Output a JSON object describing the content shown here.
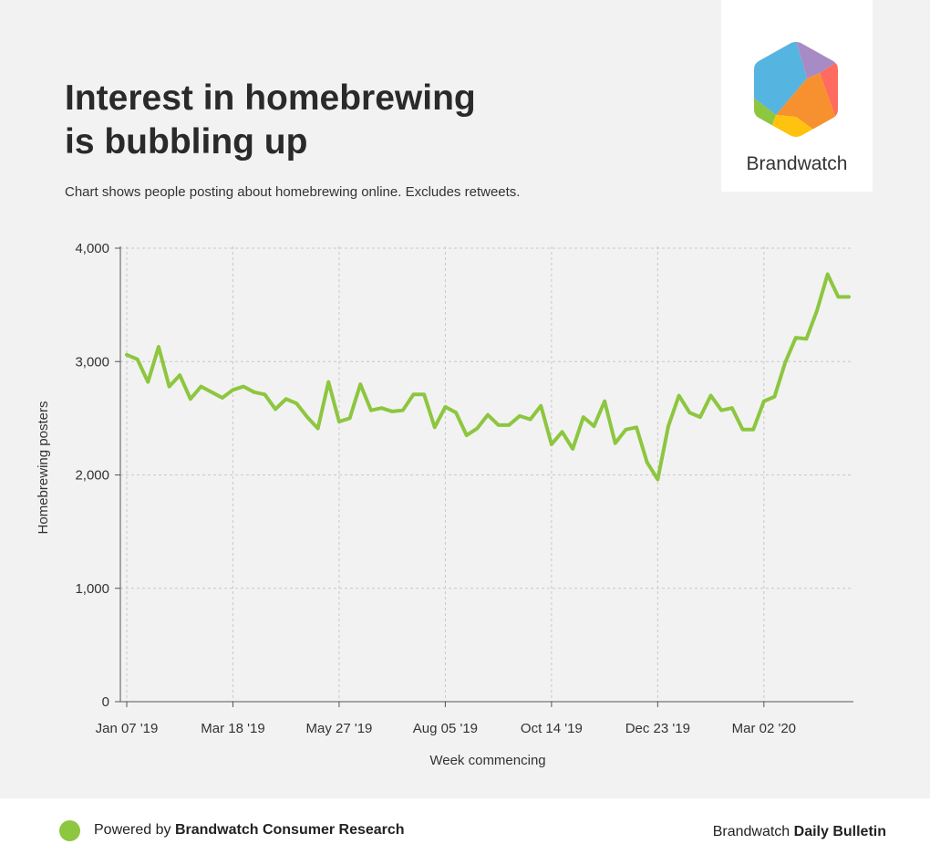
{
  "header": {
    "title_line1": "Interest in homebrewing",
    "title_line2": "is bubbling up",
    "subtitle": "Chart shows people posting about homebrewing online. Excludes retweets."
  },
  "logo": {
    "text": "Brandwatch",
    "colors": [
      "#56b4e0",
      "#a78bc4",
      "#ff6b5e",
      "#f7902f",
      "#ffc20e",
      "#8dc63f"
    ]
  },
  "colors": {
    "line": "#8dc63f",
    "grid": "#c8c8c8",
    "axis": "#555555",
    "background": "#f2f2f2"
  },
  "chart_data": {
    "type": "line",
    "title": "Interest in homebrewing is bubbling up",
    "xlabel": "Week commencing",
    "ylabel": "Homebrewing posters",
    "ylim": [
      0,
      4000
    ],
    "yticks": [
      0,
      1000,
      2000,
      3000,
      4000
    ],
    "ytick_labels": [
      "0",
      "1,000",
      "2,000",
      "3,000",
      "4,000"
    ],
    "xtick_labels": [
      "Jan 07 '19",
      "Mar 18 '19",
      "May 27 '19",
      "Aug 05 '19",
      "Oct 14 '19",
      "Dec 23 '19",
      "Mar 02 '20"
    ],
    "grid": true,
    "series": [
      {
        "values": [
          3060,
          3020,
          2820,
          3130,
          2780,
          2880,
          2670,
          2780,
          2730,
          2680,
          2750,
          2780,
          2730,
          2710,
          2580,
          2670,
          2630,
          2510,
          2410,
          2820,
          2470,
          2500,
          2800,
          2570,
          2590,
          2560,
          2570,
          2710,
          2710,
          2420,
          2600,
          2550,
          2350,
          2410,
          2530,
          2440,
          2440,
          2520,
          2490,
          2610,
          2270,
          2380,
          2230,
          2510,
          2430,
          2650,
          2280,
          2400,
          2420,
          2110,
          1960,
          2430,
          2700,
          2550,
          2510,
          2700,
          2570,
          2590,
          2400,
          2400,
          2650,
          2690,
          2990,
          3210,
          3200,
          3450,
          3770,
          3570,
          3570
        ]
      }
    ]
  },
  "footer": {
    "powered_prefix": "Powered by ",
    "powered_brand": "Brandwatch Consumer Research",
    "right_prefix": "Brandwatch ",
    "right_bold": "Daily Bulletin"
  }
}
